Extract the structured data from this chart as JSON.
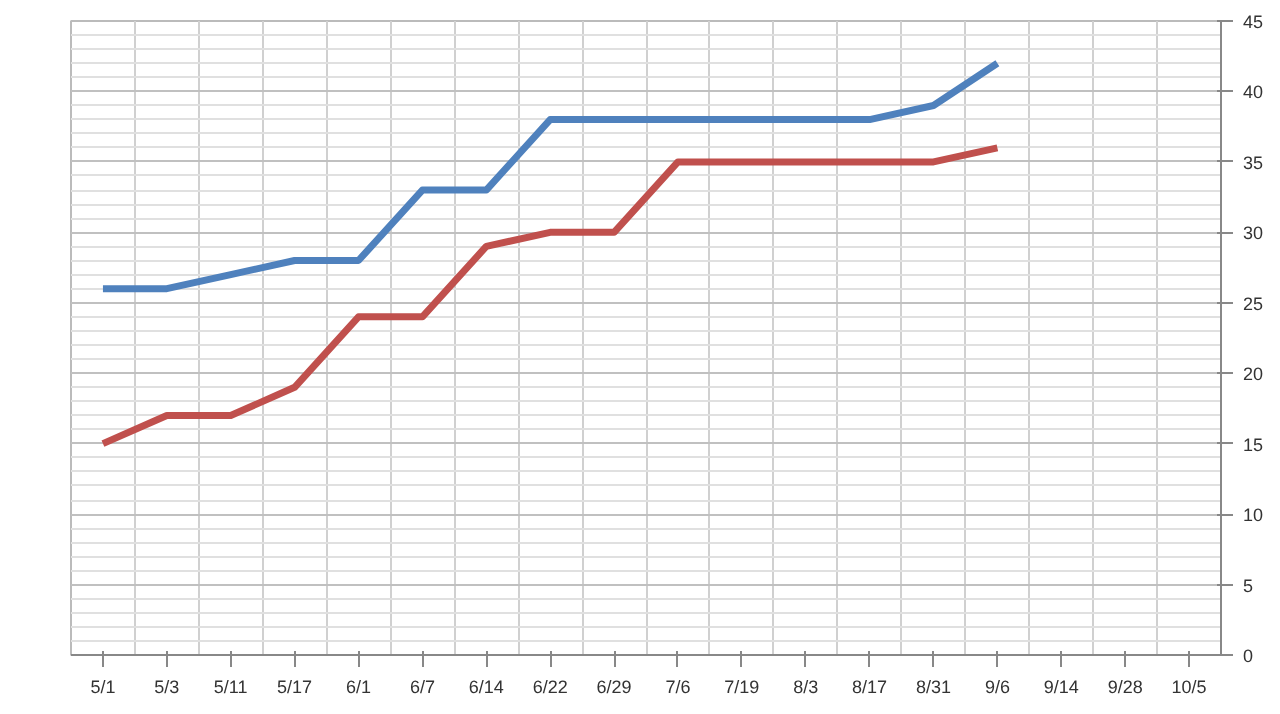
{
  "chart_data": {
    "type": "line",
    "categories": [
      "5/1",
      "5/3",
      "5/11",
      "5/17",
      "6/1",
      "6/7",
      "6/14",
      "6/22",
      "6/29",
      "7/6",
      "7/19",
      "8/3",
      "8/17",
      "8/31",
      "9/6",
      "9/14",
      "9/28",
      "10/5"
    ],
    "series": [
      {
        "color": "#4f81bd",
        "values": [
          26,
          26,
          27,
          28,
          28,
          33,
          33,
          38,
          38,
          38,
          38,
          38,
          38,
          39,
          42,
          null,
          null,
          null
        ]
      },
      {
        "color": "#c0504d",
        "values": [
          15,
          17,
          17,
          19,
          24,
          24,
          29,
          30,
          30,
          35,
          35,
          35,
          35,
          35,
          36,
          null,
          null,
          null
        ]
      }
    ],
    "ylim": [
      0,
      45
    ],
    "yticks": [
      0,
      5,
      10,
      15,
      20,
      25,
      30,
      35,
      40,
      45
    ],
    "grid": true,
    "marker": "none",
    "line_style": "solid"
  }
}
